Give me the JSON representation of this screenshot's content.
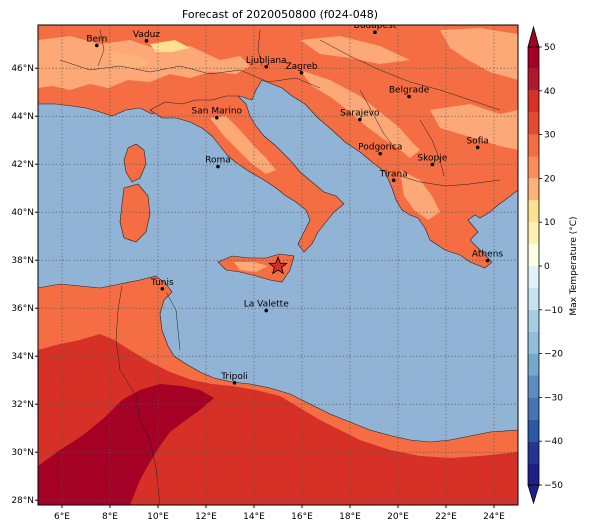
{
  "map": {
    "title": "Forecast of 2020050800 (f024-048)",
    "extent": {
      "lon_min": 5.0,
      "lon_max": 25.0,
      "lat_min": 27.8,
      "lat_max": 47.8
    },
    "lon_ticks": [
      {
        "value": 6,
        "label": "6°E"
      },
      {
        "value": 8,
        "label": "8°E"
      },
      {
        "value": 10,
        "label": "10°E"
      },
      {
        "value": 12,
        "label": "12°E"
      },
      {
        "value": 14,
        "label": "14°E"
      },
      {
        "value": 16,
        "label": "16°E"
      },
      {
        "value": 18,
        "label": "18°E"
      },
      {
        "value": 20,
        "label": "20°E"
      },
      {
        "value": 22,
        "label": "22°E"
      },
      {
        "value": 24,
        "label": "24°E"
      }
    ],
    "lat_ticks": [
      {
        "value": 28,
        "label": "28°N"
      },
      {
        "value": 30,
        "label": "30°N"
      },
      {
        "value": 32,
        "label": "32°N"
      },
      {
        "value": 34,
        "label": "34°N"
      },
      {
        "value": 36,
        "label": "36°N"
      },
      {
        "value": 38,
        "label": "38°N"
      },
      {
        "value": 40,
        "label": "40°N"
      },
      {
        "value": 42,
        "label": "42°N"
      },
      {
        "value": 44,
        "label": "44°N"
      },
      {
        "value": 46,
        "label": "46°N"
      }
    ],
    "gridlines": true,
    "cities": [
      {
        "name": "Bern",
        "lon": 7.45,
        "lat": 46.95
      },
      {
        "name": "Vaduz",
        "lon": 9.52,
        "lat": 47.14
      },
      {
        "name": "Budapest",
        "lon": 19.04,
        "lat": 47.5
      },
      {
        "name": "Ljubljana",
        "lon": 14.51,
        "lat": 46.06
      },
      {
        "name": "Zagreb",
        "lon": 15.98,
        "lat": 45.81
      },
      {
        "name": "Belgrade",
        "lon": 20.46,
        "lat": 44.82
      },
      {
        "name": "San Marino",
        "lon": 12.45,
        "lat": 43.94
      },
      {
        "name": "Sarajevo",
        "lon": 18.41,
        "lat": 43.86
      },
      {
        "name": "Sofia",
        "lon": 23.32,
        "lat": 42.7
      },
      {
        "name": "Podgorica",
        "lon": 19.26,
        "lat": 42.44
      },
      {
        "name": "Skopje",
        "lon": 21.43,
        "lat": 41.99
      },
      {
        "name": "Roma",
        "lon": 12.5,
        "lat": 41.9
      },
      {
        "name": "Tirana",
        "lon": 19.82,
        "lat": 41.33
      },
      {
        "name": "Athens",
        "lon": 23.73,
        "lat": 37.98
      },
      {
        "name": "Tunis",
        "lon": 10.18,
        "lat": 36.81
      },
      {
        "name": "La Valette",
        "lon": 14.51,
        "lat": 35.9
      },
      {
        "name": "Tripoli",
        "lon": 13.19,
        "lat": 32.89
      }
    ],
    "marker": {
      "symbol": "star",
      "lon": 15.0,
      "lat": 37.75,
      "color": "#d7301f"
    }
  },
  "colorbar": {
    "label": "Max Temperature (°C)",
    "min": -50,
    "max": 50,
    "bounds": [
      -50,
      -45,
      -40,
      -35,
      -30,
      -25,
      -20,
      -15,
      -10,
      -5,
      0,
      5,
      10,
      15,
      20,
      25,
      30,
      35,
      40,
      45,
      50
    ],
    "colors": [
      "#1f1f8a",
      "#253494",
      "#2c58a8",
      "#4575b4",
      "#5b8cc2",
      "#74a9cf",
      "#91bfdb",
      "#a6cee3",
      "#c6e2ef",
      "#e0f3f8",
      "#ffffe5",
      "#fff0b3",
      "#fee090",
      "#fdb27a",
      "#fc8d59",
      "#f46d43",
      "#e34a33",
      "#d73027",
      "#b2182b",
      "#a50026"
    ],
    "ticks": [
      {
        "value": 50,
        "label": "50"
      },
      {
        "value": 40,
        "label": "40"
      },
      {
        "value": 30,
        "label": "30"
      },
      {
        "value": 20,
        "label": "20"
      },
      {
        "value": 10,
        "label": "10"
      },
      {
        "value": 0,
        "label": "0"
      },
      {
        "value": -10,
        "label": "−10"
      },
      {
        "value": -20,
        "label": "−20"
      },
      {
        "value": -30,
        "label": "−30"
      },
      {
        "value": -40,
        "label": "−40"
      },
      {
        "value": -50,
        "label": "−50"
      }
    ],
    "extend": "both"
  },
  "palette": {
    "sea": "#91b4d6",
    "land_warm": "#f46d43",
    "land_light": "#fca877",
    "land_hot": "#d73027",
    "land_very_hot": "#a50026"
  }
}
